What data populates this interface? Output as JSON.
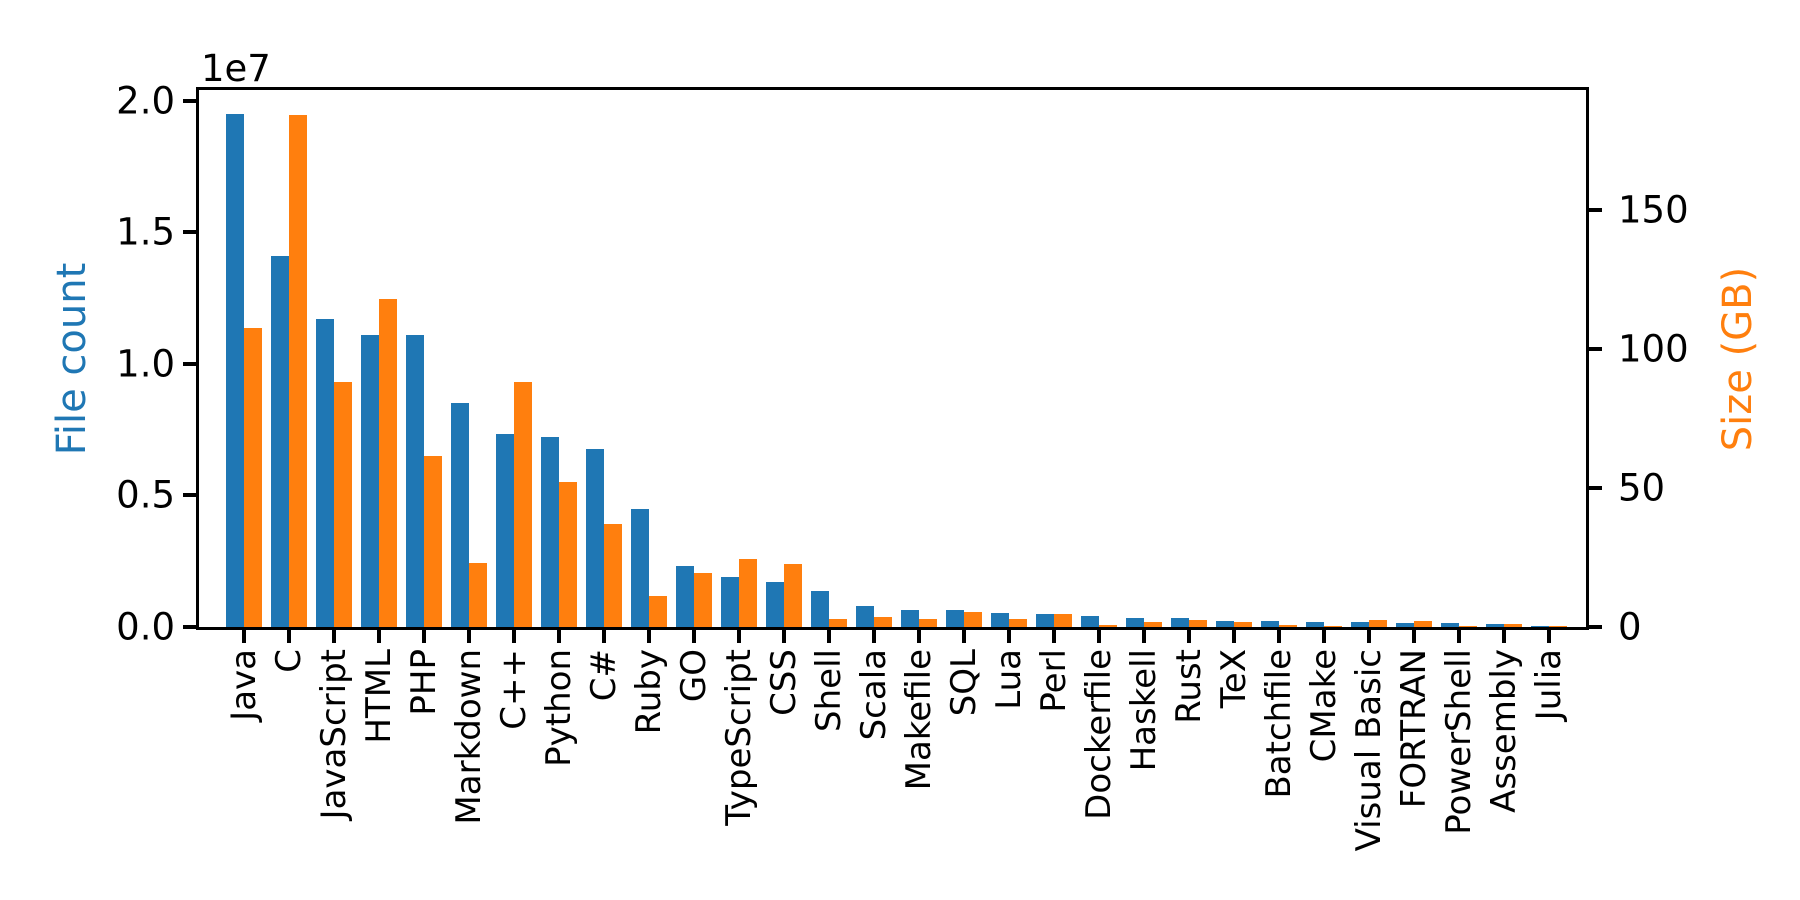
{
  "figure": {
    "background": "#ffffff"
  },
  "chart_data": {
    "type": "bar",
    "title": "",
    "categories": [
      "Java",
      "C",
      "JavaScript",
      "HTML",
      "PHP",
      "Markdown",
      "C++",
      "Python",
      "C#",
      "Ruby",
      "GO",
      "TypeScript",
      "CSS",
      "Shell",
      "Scala",
      "Makefile",
      "SQL",
      "Lua",
      "Perl",
      "Dockerfile",
      "Haskell",
      "Rust",
      "TeX",
      "Batchfile",
      "CMake",
      "Visual Basic",
      "FORTRAN",
      "PowerShell",
      "Assembly",
      "Julia"
    ],
    "series": [
      {
        "name": "File count",
        "axis": "left",
        "color": "#1f77b4",
        "values": [
          19500000,
          14100000,
          11700000,
          11100000,
          11100000,
          8500000,
          7350000,
          7200000,
          6770000,
          4500000,
          2300000,
          1900000,
          1700000,
          1370000,
          800000,
          650000,
          640000,
          520000,
          480000,
          400000,
          350000,
          340000,
          240000,
          235000,
          190000,
          190000,
          160000,
          150000,
          100000,
          55000
        ]
      },
      {
        "name": "Size (GB)",
        "axis": "right",
        "color": "#ff7f0e",
        "values": [
          107.5,
          184,
          88,
          118,
          61.5,
          23,
          88,
          52,
          37,
          11,
          19.3,
          24.5,
          22.5,
          3.0,
          3.7,
          2.9,
          5.5,
          2.8,
          4.7,
          0.6,
          1.9,
          2.5,
          1.9,
          0.8,
          0.5,
          2.6,
          2.3,
          0.5,
          0.9,
          0.3
        ]
      }
    ],
    "left_axis": {
      "label": "File count",
      "color": "#1f77b4",
      "tick_labels": [
        "0.0",
        "0.5",
        "1.0",
        "1.5",
        "2.0"
      ],
      "tick_values": [
        0,
        5000000,
        10000000,
        15000000,
        20000000
      ],
      "offset_label": "1e7",
      "max": 20400000
    },
    "right_axis": {
      "label": "Size (GB)",
      "color": "#ff7f0e",
      "tick_labels": [
        "0",
        "50",
        "100",
        "150"
      ],
      "tick_values": [
        0,
        50,
        100,
        150
      ],
      "max": 193
    },
    "x_axis": {
      "tick_rotation_deg": 90
    },
    "grid": false,
    "legend": false
  }
}
